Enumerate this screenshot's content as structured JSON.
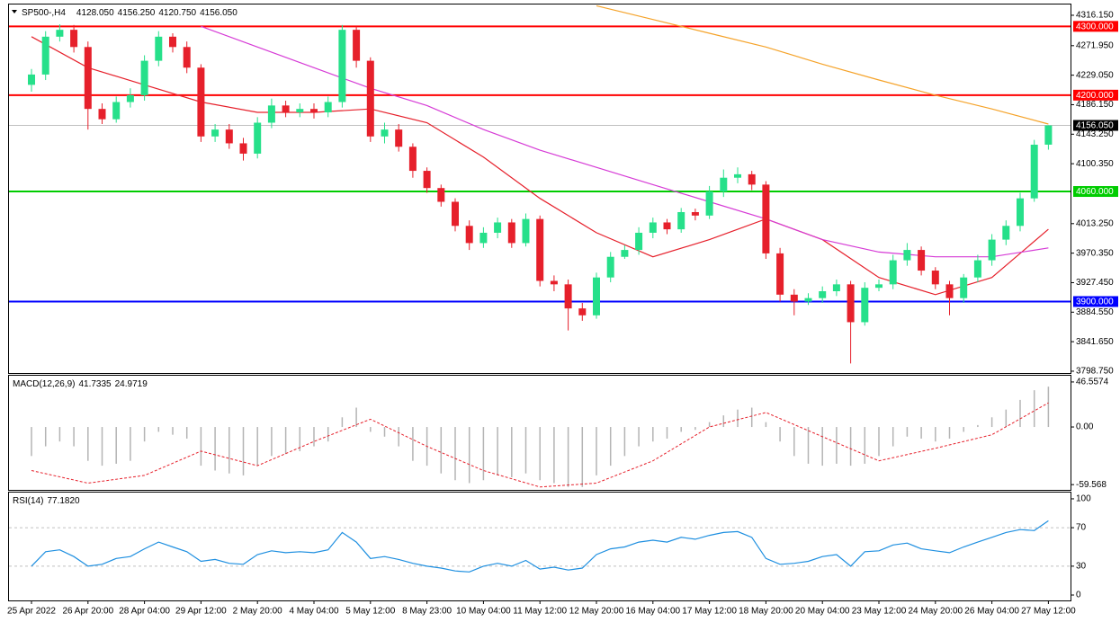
{
  "chart_data": [
    {
      "type": "candlestick",
      "title": "SP500-,H4",
      "title_values": [
        "4128.050",
        "4156.250",
        "4120.750",
        "4156.050"
      ],
      "categories": [
        "25 Apr 2022",
        null,
        null,
        null,
        "26 Apr 20:00",
        null,
        null,
        null,
        "28 Apr 04:00",
        null,
        null,
        null,
        "29 Apr 12:00",
        null,
        null,
        null,
        "2 May 20:00",
        null,
        null,
        null,
        "4 May 04:00",
        null,
        null,
        null,
        "5 May 12:00",
        null,
        null,
        null,
        "8 May 23:00",
        null,
        null,
        null,
        "10 May 04:00",
        null,
        null,
        null,
        "11 May 12:00",
        null,
        null,
        null,
        "12 May 20:00",
        null,
        null,
        null,
        "16 May 04:00",
        null,
        null,
        null,
        "17 May 12:00",
        null,
        null,
        null,
        "18 May 20:00",
        null,
        null,
        null,
        "20 May 04:00",
        null,
        null,
        null,
        "23 May 12:00",
        null,
        null,
        null,
        "24 May 20:00",
        null,
        null,
        null,
        "26 May 04:00",
        null,
        null,
        null,
        "27 May 12:00"
      ],
      "open": [
        4215,
        4230,
        4285,
        4295,
        4270,
        4180,
        4165,
        4190,
        4200,
        4250,
        4285,
        4270,
        4240,
        4140,
        4150,
        4130,
        4115,
        4160,
        4185,
        4175,
        4180,
        4175,
        4190,
        4295,
        4250,
        4140,
        4150,
        4125,
        4090,
        4065,
        4045,
        4010,
        3985,
        4000,
        4015,
        3985,
        4020,
        3930,
        3925,
        3890,
        3880,
        3935,
        3965,
        3975,
        4000,
        4015,
        4005,
        4030,
        4025,
        4060,
        4080,
        4085,
        4070,
        3970,
        3910,
        3900,
        3905,
        3915,
        3925,
        3870,
        3920,
        3925,
        3960,
        3975,
        3945,
        3925,
        3905,
        3935,
        3960,
        3990,
        4010,
        4050,
        4128.05
      ],
      "high": [
        4238,
        4293,
        4303,
        4302,
        4278,
        4188,
        4198,
        4210,
        4258,
        4293,
        4290,
        4278,
        4245,
        4158,
        4158,
        4138,
        4168,
        4195,
        4192,
        4188,
        4188,
        4198,
        4302,
        4300,
        4255,
        4160,
        4158,
        4130,
        4095,
        4070,
        4050,
        4018,
        4008,
        4022,
        4020,
        4028,
        4025,
        3938,
        3932,
        3898,
        3942,
        3972,
        3982,
        4008,
        4022,
        4020,
        4036,
        4035,
        4068,
        4092,
        4095,
        4090,
        4075,
        3978,
        3918,
        3912,
        3922,
        3932,
        3930,
        3928,
        3932,
        3968,
        3985,
        3980,
        3950,
        3930,
        3940,
        3968,
        3998,
        4018,
        4058,
        4135,
        4156.25
      ],
      "low": [
        4205,
        4222,
        4278,
        4262,
        4150,
        4158,
        4160,
        4182,
        4192,
        4242,
        4262,
        4232,
        4132,
        4132,
        4122,
        4105,
        4108,
        4152,
        4168,
        4168,
        4166,
        4168,
        4182,
        4240,
        4132,
        4130,
        4118,
        4080,
        4058,
        4038,
        4002,
        3975,
        3978,
        3992,
        3978,
        3980,
        3922,
        3915,
        3858,
        3872,
        3875,
        3928,
        3962,
        3968,
        3992,
        3998,
        4000,
        4018,
        4020,
        4052,
        4072,
        4062,
        3962,
        3900,
        3880,
        3895,
        3898,
        3908,
        3810,
        3865,
        3915,
        3918,
        3952,
        3938,
        3918,
        3880,
        3898,
        3928,
        3952,
        3982,
        4002,
        4045,
        4120.75
      ],
      "close": [
        4230,
        4285,
        4295,
        4270,
        4180,
        4165,
        4190,
        4200,
        4250,
        4285,
        4270,
        4240,
        4140,
        4150,
        4130,
        4115,
        4160,
        4185,
        4175,
        4180,
        4175,
        4190,
        4295,
        4250,
        4140,
        4150,
        4125,
        4090,
        4065,
        4045,
        4010,
        3985,
        4000,
        4015,
        3985,
        4020,
        3930,
        3925,
        3890,
        3880,
        3935,
        3965,
        3975,
        4000,
        4015,
        4005,
        4030,
        4025,
        4060,
        4080,
        4085,
        4070,
        3970,
        3910,
        3900,
        3905,
        3915,
        3925,
        3870,
        3920,
        3925,
        3960,
        3975,
        3945,
        3925,
        3905,
        3935,
        3960,
        3990,
        4010,
        4050,
        4128,
        4156.05
      ],
      "up_color": "#26e08a",
      "down_color": "#e6202b",
      "ylim": [
        3796.1,
        4331.8
      ],
      "yticks": [
        {
          "value": 4316.15,
          "label": "4316.150"
        },
        {
          "value": 4271.95,
          "label": "4271.950"
        },
        {
          "value": 4229.05,
          "label": "4229.050"
        },
        {
          "value": 4186.15,
          "label": "4186.150"
        },
        {
          "value": 4143.25,
          "label": "4143.250"
        },
        {
          "value": 4100.35,
          "label": "4100.350"
        },
        {
          "value": 4013.25,
          "label": "4013.250"
        },
        {
          "value": 3970.35,
          "label": "3970.350"
        },
        {
          "value": 3927.45,
          "label": "3927.450"
        },
        {
          "value": 3884.55,
          "label": "3884.550"
        },
        {
          "value": 3841.65,
          "label": "3841.650"
        },
        {
          "value": 3798.75,
          "label": "3798.750"
        }
      ],
      "ma_x": [
        0,
        4,
        8,
        12,
        16,
        20,
        24,
        28,
        32,
        36,
        40,
        44,
        48,
        52,
        56,
        60,
        64,
        68,
        72
      ],
      "ma": [
        {
          "color": "#e6202b",
          "values": [
            4285,
            4240,
            4215,
            4190,
            4175,
            4175,
            4180,
            4160,
            4110,
            4050,
            4000,
            3965,
            3990,
            4020,
            3990,
            3935,
            3910,
            3935,
            4005
          ]
        },
        {
          "color": "#d63bd6",
          "values": [
            null,
            null,
            null,
            4300,
            4270,
            4240,
            4210,
            4185,
            4150,
            4120,
            4095,
            4070,
            4045,
            4020,
            3990,
            3972,
            3965,
            3965,
            3978
          ]
        },
        {
          "color": "#f5a32a",
          "values": [
            null,
            null,
            null,
            null,
            null,
            null,
            null,
            null,
            null,
            null,
            4330,
            4310,
            4290,
            4270,
            4245,
            4222,
            4200,
            4180,
            4158
          ]
        }
      ],
      "hlines": [
        {
          "value": 4300,
          "label": "4300.000",
          "color": "#ff0000"
        },
        {
          "value": 4200,
          "label": "4200.000",
          "color": "#ff0000"
        },
        {
          "value": 4060,
          "label": "4060.000",
          "color": "#00cc00"
        },
        {
          "value": 3900,
          "label": "3900.000",
          "color": "#0000ff"
        },
        {
          "value": 4156.05,
          "label": "4156.050",
          "color": "#c0c0c0"
        }
      ]
    },
    {
      "type": "macd",
      "title": "MACD(12,26,9)",
      "values": [
        -30,
        -20,
        -15,
        -20,
        -35,
        -40,
        -38,
        -35,
        -15,
        -5,
        -8,
        -12,
        -40,
        -45,
        -48,
        -50,
        -40,
        -30,
        -28,
        -25,
        -20,
        -15,
        10,
        20,
        -5,
        -10,
        -20,
        -35,
        -40,
        -48,
        -55,
        -58,
        -55,
        -50,
        -52,
        -48,
        -55,
        -58,
        -62,
        -62,
        -50,
        -40,
        -30,
        -20,
        -15,
        -12,
        -5,
        -3,
        5,
        12,
        18,
        20,
        5,
        -15,
        -30,
        -38,
        -40,
        -38,
        -40,
        -38,
        -30,
        -20,
        -10,
        -12,
        -15,
        -12,
        -5,
        2,
        10,
        18,
        28,
        38,
        41.7335
      ],
      "signal": [
        -45,
        -58,
        -50,
        -25,
        -40,
        -15,
        8,
        -20,
        -45,
        -62,
        -58,
        -35,
        0,
        15,
        -10,
        -35,
        -22,
        -8,
        24.9719
      ],
      "bar_color": "#b4b4b4",
      "signal_color": "#e6202b",
      "ylim": [
        -65,
        53
      ],
      "yticks": [
        46.5574,
        {
          "value": 0,
          "label": "0.00"
        },
        -59.568
      ]
    },
    {
      "type": "rsi",
      "title": "RSI(14)",
      "last_label": "77.1820",
      "values": [
        30,
        45,
        47,
        40,
        30,
        32,
        38,
        40,
        48,
        55,
        50,
        45,
        35,
        37,
        33,
        32,
        42,
        46,
        44,
        45,
        44,
        47,
        65,
        55,
        38,
        40,
        37,
        33,
        30,
        28,
        25,
        24,
        30,
        33,
        30,
        36,
        27,
        29,
        26,
        28,
        42,
        48,
        50,
        55,
        57,
        55,
        60,
        58,
        62,
        65,
        66,
        60,
        38,
        32,
        33,
        35,
        40,
        42,
        30,
        45,
        46,
        52,
        54,
        48,
        46,
        44,
        50,
        55,
        60,
        65,
        68,
        67,
        77.182
      ],
      "color": "#1e8fe0",
      "ylim": [
        -5.6,
        106.5
      ],
      "yticks": [
        100,
        70,
        30,
        0
      ]
    }
  ]
}
